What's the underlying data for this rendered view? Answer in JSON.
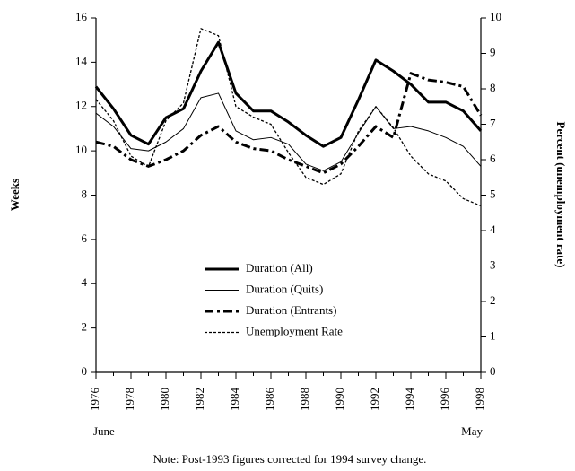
{
  "chart_data": {
    "type": "line",
    "y_label": "Weeks",
    "y2_label": "Percent (unemployment rate)",
    "annotations": [
      "June",
      "May"
    ],
    "note": "Note: Post-1993 figures corrected for 1994 survey change.",
    "x": [
      1976,
      1977,
      1978,
      1979,
      1980,
      1981,
      1982,
      1983,
      1984,
      1985,
      1986,
      1987,
      1988,
      1989,
      1990,
      1991,
      1992,
      1993,
      1994,
      1995,
      1996,
      1997,
      1998
    ],
    "xlim": [
      1976,
      1998
    ],
    "xticks": [
      1976,
      1978,
      1980,
      1982,
      1984,
      1986,
      1988,
      1990,
      1992,
      1994,
      1996,
      1998
    ],
    "ylim": [
      0,
      16
    ],
    "yticks": [
      0,
      2,
      4,
      6,
      8,
      10,
      12,
      14,
      16
    ],
    "y2lim": [
      0,
      10
    ],
    "y2ticks": [
      0,
      1,
      2,
      3,
      4,
      5,
      6,
      7,
      8,
      9,
      10
    ],
    "legend": "lower center",
    "series": [
      {
        "name": "Duration (All)",
        "color": "#000000",
        "style": "thick",
        "values": [
          12.9,
          11.9,
          10.7,
          10.3,
          11.5,
          11.9,
          13.6,
          14.9,
          12.6,
          11.8,
          11.8,
          11.3,
          10.7,
          10.2,
          10.6,
          12.3,
          14.1,
          13.6,
          13.0,
          12.2,
          12.2,
          11.8,
          10.9
        ]
      },
      {
        "name": "Duration (Quits)",
        "color": "#000000",
        "style": "thin",
        "values": [
          11.7,
          11.1,
          10.1,
          10.0,
          10.4,
          11.0,
          12.4,
          12.6,
          10.9,
          10.5,
          10.6,
          10.3,
          9.4,
          9.1,
          9.5,
          10.8,
          12.0,
          11.0,
          11.1,
          10.9,
          10.6,
          10.2,
          9.3
        ]
      },
      {
        "name": "Duration (Entrants)",
        "color": "#000000",
        "style": "dashdot",
        "values": [
          10.4,
          10.2,
          9.6,
          9.3,
          9.6,
          10.0,
          10.7,
          11.1,
          10.4,
          10.1,
          10.0,
          9.6,
          9.3,
          9.0,
          9.4,
          10.2,
          11.1,
          10.6,
          13.5,
          13.2,
          13.1,
          12.9,
          11.6
        ]
      },
      {
        "name": "Unemployment Rate",
        "color": "#000000",
        "style": "dotted",
        "axis": "y2",
        "values": [
          7.7,
          7.1,
          6.1,
          5.8,
          7.1,
          7.6,
          9.7,
          9.5,
          7.5,
          7.2,
          7.0,
          6.2,
          5.5,
          5.3,
          5.6,
          6.8,
          7.5,
          6.9,
          6.1,
          5.6,
          5.4,
          4.9,
          4.7
        ]
      }
    ]
  }
}
